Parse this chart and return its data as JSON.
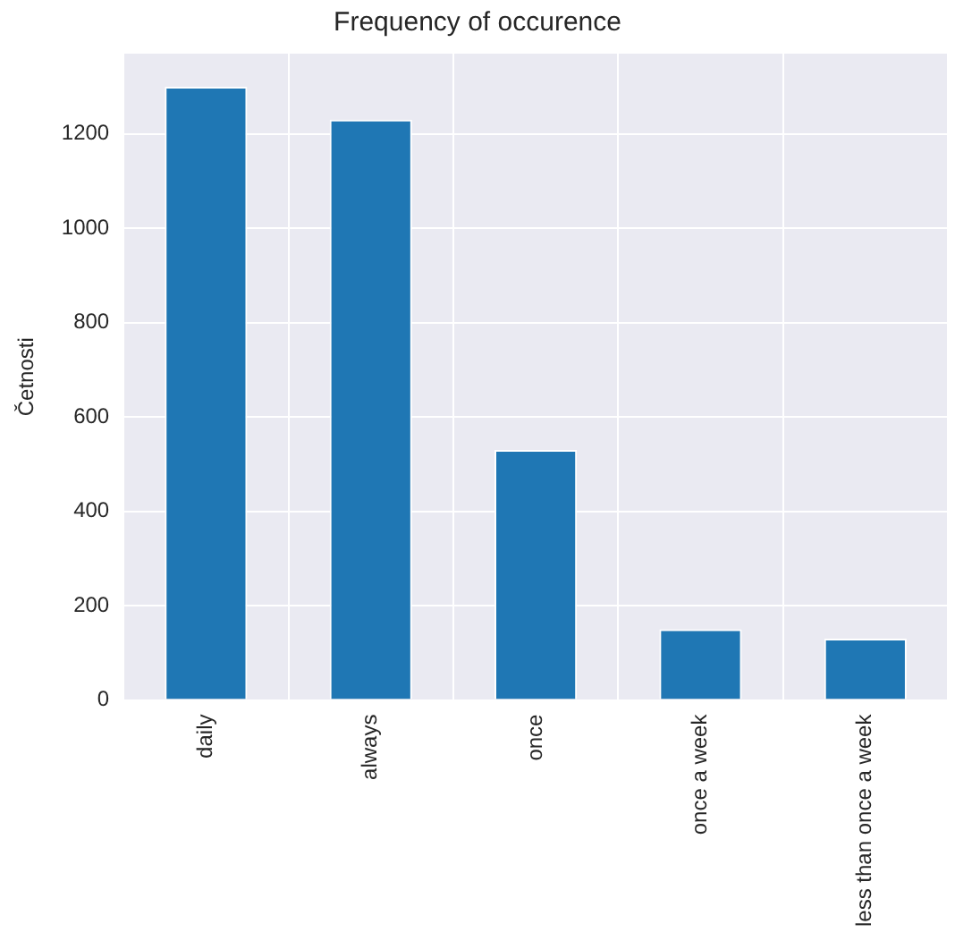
{
  "chart_data": {
    "type": "bar",
    "title": "Frequency of occurence",
    "ylabel": "Četnosti",
    "categories": [
      "daily",
      "always",
      "once",
      "once a week",
      "less than once a week"
    ],
    "values": [
      1300,
      1230,
      530,
      150,
      130
    ],
    "color": "#1f77b4",
    "ylim": [
      0,
      1370
    ],
    "yticks": [
      0,
      200,
      400,
      600,
      800,
      1000,
      1200
    ],
    "grid": true,
    "legend": false
  }
}
